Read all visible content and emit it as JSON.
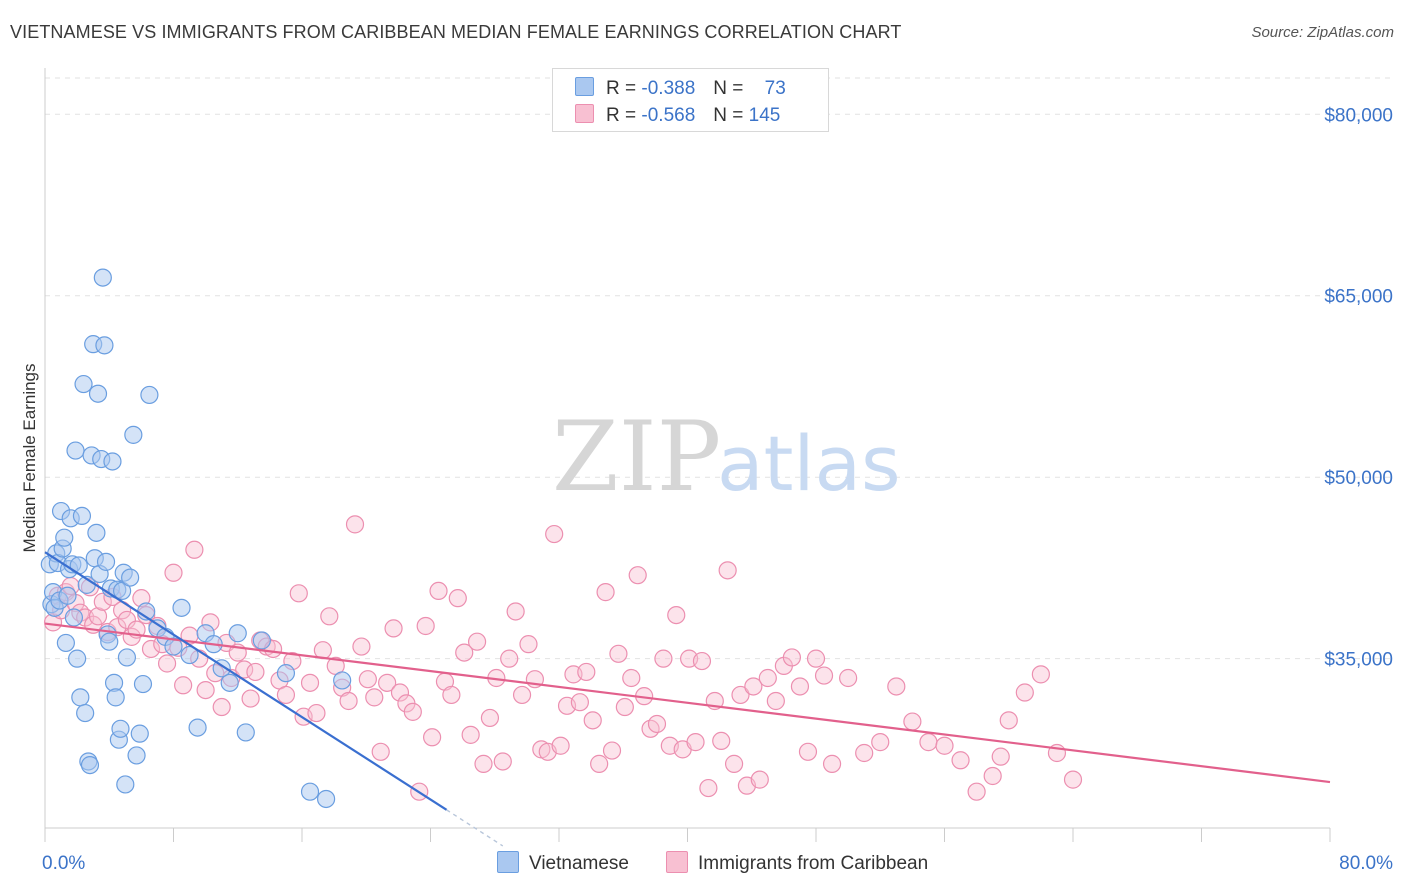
{
  "header": {
    "title": "VIETNAMESE VS IMMIGRANTS FROM CARIBBEAN MEDIAN FEMALE EARNINGS CORRELATION CHART",
    "source": "Source: ZipAtlas.com"
  },
  "watermark": {
    "zip": "ZIP",
    "atlas": "atlas"
  },
  "legend": {
    "rows": [
      {
        "r_label": "R =",
        "r_value": "-0.388",
        "n_label": "N =",
        "n_value": "73",
        "color": "#aac8f0",
        "stroke": "#6a9ee0"
      },
      {
        "r_label": "R =",
        "r_value": "-0.568",
        "n_label": "N =",
        "n_value": "145",
        "color": "#f8c0d2",
        "stroke": "#ec8fb0"
      }
    ]
  },
  "colors": {
    "blue_fill": "#aac8f0",
    "blue_stroke": "#6a9ee0",
    "blue_line": "#3a6fd0",
    "pink_fill": "#f8c0d2",
    "pink_stroke": "#ec8fb0",
    "pink_line": "#e2608c",
    "axis_label": "#3b73c8",
    "grid": "#e2e2e2"
  },
  "chart_data": {
    "type": "scatter",
    "title": "VIETNAMESE VS IMMIGRANTS FROM CARIBBEAN MEDIAN FEMALE EARNINGS CORRELATION CHART",
    "xlabel": "",
    "ylabel": "Median Female Earnings",
    "xlim": [
      0,
      80
    ],
    "ylim": [
      21000,
      83000
    ],
    "x_tick_labels": [
      "0.0%",
      "80.0%"
    ],
    "y_ticks": [
      35000,
      50000,
      65000,
      80000
    ],
    "y_tick_labels": [
      "$35,000",
      "$50,000",
      "$65,000",
      "$80,000"
    ],
    "grid": true,
    "series": [
      {
        "name": "Vietnamese",
        "r": -0.388,
        "n": 73,
        "trend": {
          "x0": 0,
          "y0": 43800,
          "x1": 25,
          "y1": 22500,
          "dash_to_x": 28.5
        },
        "points": [
          [
            0.3,
            42800
          ],
          [
            0.4,
            39500
          ],
          [
            0.5,
            40500
          ],
          [
            0.6,
            39200
          ],
          [
            0.7,
            43700
          ],
          [
            0.8,
            42900
          ],
          [
            0.9,
            39800
          ],
          [
            1.0,
            47200
          ],
          [
            1.1,
            44100
          ],
          [
            1.2,
            45000
          ],
          [
            1.3,
            36300
          ],
          [
            1.4,
            40200
          ],
          [
            1.5,
            42400
          ],
          [
            1.6,
            46600
          ],
          [
            1.7,
            42800
          ],
          [
            1.8,
            38400
          ],
          [
            1.9,
            52200
          ],
          [
            2.0,
            35000
          ],
          [
            2.1,
            42700
          ],
          [
            2.2,
            31800
          ],
          [
            2.3,
            46800
          ],
          [
            2.4,
            57700
          ],
          [
            2.5,
            30500
          ],
          [
            2.6,
            41100
          ],
          [
            2.7,
            26500
          ],
          [
            2.8,
            26200
          ],
          [
            2.9,
            51800
          ],
          [
            3.0,
            61000
          ],
          [
            3.1,
            43300
          ],
          [
            3.2,
            45400
          ],
          [
            3.3,
            56900
          ],
          [
            3.4,
            42000
          ],
          [
            3.5,
            51500
          ],
          [
            3.6,
            66500
          ],
          [
            3.7,
            60900
          ],
          [
            3.8,
            43000
          ],
          [
            3.9,
            37000
          ],
          [
            4.0,
            36400
          ],
          [
            4.1,
            40800
          ],
          [
            4.2,
            51300
          ],
          [
            4.3,
            33000
          ],
          [
            4.4,
            31800
          ],
          [
            4.5,
            40700
          ],
          [
            4.6,
            28300
          ],
          [
            4.7,
            29200
          ],
          [
            4.8,
            40600
          ],
          [
            4.9,
            42100
          ],
          [
            5.0,
            24600
          ],
          [
            5.1,
            35100
          ],
          [
            5.3,
            41700
          ],
          [
            5.5,
            53500
          ],
          [
            5.7,
            27000
          ],
          [
            5.9,
            28800
          ],
          [
            6.1,
            32900
          ],
          [
            6.3,
            38900
          ],
          [
            6.5,
            56800
          ],
          [
            7.0,
            37500
          ],
          [
            7.5,
            36800
          ],
          [
            8.0,
            36000
          ],
          [
            8.5,
            39200
          ],
          [
            9.0,
            35300
          ],
          [
            9.5,
            29300
          ],
          [
            10.0,
            37100
          ],
          [
            10.5,
            36200
          ],
          [
            11.0,
            34200
          ],
          [
            11.5,
            33000
          ],
          [
            12.0,
            37100
          ],
          [
            12.5,
            28900
          ],
          [
            13.5,
            36500
          ],
          [
            15.0,
            33800
          ],
          [
            16.5,
            24000
          ],
          [
            17.5,
            23400
          ],
          [
            18.5,
            33200
          ]
        ]
      },
      {
        "name": "Immigrants from Caribbean",
        "r": -0.568,
        "n": 145,
        "trend": {
          "x0": 0,
          "y0": 37900,
          "x1": 80,
          "y1": 24800
        },
        "points": [
          [
            0.5,
            38000
          ],
          [
            0.8,
            40200
          ],
          [
            1.0,
            39000
          ],
          [
            1.3,
            40500
          ],
          [
            1.6,
            41000
          ],
          [
            1.9,
            39600
          ],
          [
            2.2,
            38800
          ],
          [
            2.5,
            38400
          ],
          [
            2.8,
            40900
          ],
          [
            3.0,
            37800
          ],
          [
            3.3,
            38500
          ],
          [
            3.6,
            39700
          ],
          [
            3.9,
            37200
          ],
          [
            4.2,
            40100
          ],
          [
            4.5,
            37600
          ],
          [
            4.8,
            39000
          ],
          [
            5.1,
            38200
          ],
          [
            5.4,
            36800
          ],
          [
            5.7,
            37400
          ],
          [
            6.0,
            40000
          ],
          [
            6.3,
            38600
          ],
          [
            6.6,
            35800
          ],
          [
            7.0,
            37700
          ],
          [
            7.3,
            36200
          ],
          [
            7.6,
            34600
          ],
          [
            8.0,
            42100
          ],
          [
            8.3,
            35900
          ],
          [
            8.6,
            32800
          ],
          [
            9.0,
            36900
          ],
          [
            9.3,
            44000
          ],
          [
            9.6,
            35000
          ],
          [
            10.0,
            32400
          ],
          [
            10.3,
            38000
          ],
          [
            10.6,
            33800
          ],
          [
            11.0,
            31000
          ],
          [
            11.3,
            36300
          ],
          [
            11.6,
            33400
          ],
          [
            12.0,
            35500
          ],
          [
            12.4,
            34100
          ],
          [
            12.8,
            31700
          ],
          [
            13.1,
            33900
          ],
          [
            13.4,
            36500
          ],
          [
            13.8,
            36000
          ],
          [
            14.2,
            35800
          ],
          [
            14.6,
            33200
          ],
          [
            15.0,
            32000
          ],
          [
            15.4,
            34800
          ],
          [
            15.8,
            40400
          ],
          [
            16.1,
            30200
          ],
          [
            16.5,
            33000
          ],
          [
            16.9,
            30500
          ],
          [
            17.3,
            35700
          ],
          [
            17.7,
            38500
          ],
          [
            18.1,
            34400
          ],
          [
            18.5,
            32600
          ],
          [
            18.9,
            31500
          ],
          [
            19.3,
            46100
          ],
          [
            19.7,
            36000
          ],
          [
            20.1,
            33300
          ],
          [
            20.5,
            31800
          ],
          [
            20.9,
            27300
          ],
          [
            21.3,
            33000
          ],
          [
            21.7,
            37500
          ],
          [
            22.1,
            32200
          ],
          [
            22.5,
            31300
          ],
          [
            22.9,
            30600
          ],
          [
            23.3,
            24000
          ],
          [
            23.7,
            37700
          ],
          [
            24.1,
            28500
          ],
          [
            24.5,
            40600
          ],
          [
            24.9,
            33100
          ],
          [
            25.3,
            32000
          ],
          [
            25.7,
            40000
          ],
          [
            26.1,
            35500
          ],
          [
            26.5,
            28700
          ],
          [
            26.9,
            36400
          ],
          [
            27.3,
            26300
          ],
          [
            27.7,
            30100
          ],
          [
            28.1,
            33400
          ],
          [
            28.5,
            26500
          ],
          [
            28.9,
            35000
          ],
          [
            29.3,
            38900
          ],
          [
            29.7,
            32000
          ],
          [
            30.1,
            36200
          ],
          [
            30.5,
            33300
          ],
          [
            30.9,
            27500
          ],
          [
            31.3,
            27300
          ],
          [
            31.7,
            45300
          ],
          [
            32.1,
            27800
          ],
          [
            32.5,
            31100
          ],
          [
            32.9,
            33700
          ],
          [
            33.3,
            31400
          ],
          [
            33.7,
            33900
          ],
          [
            34.1,
            29900
          ],
          [
            34.5,
            26300
          ],
          [
            34.9,
            40500
          ],
          [
            35.3,
            27400
          ],
          [
            35.7,
            35400
          ],
          [
            36.1,
            31000
          ],
          [
            36.5,
            33400
          ],
          [
            36.9,
            41900
          ],
          [
            37.3,
            31900
          ],
          [
            37.7,
            29200
          ],
          [
            38.1,
            29600
          ],
          [
            38.5,
            35000
          ],
          [
            38.9,
            27800
          ],
          [
            39.3,
            38600
          ],
          [
            39.7,
            27500
          ],
          [
            40.1,
            35000
          ],
          [
            40.5,
            28100
          ],
          [
            40.9,
            34800
          ],
          [
            41.3,
            24300
          ],
          [
            41.7,
            31500
          ],
          [
            42.1,
            28200
          ],
          [
            42.5,
            42300
          ],
          [
            42.9,
            26300
          ],
          [
            43.3,
            32000
          ],
          [
            43.7,
            24500
          ],
          [
            44.1,
            32700
          ],
          [
            44.5,
            25000
          ],
          [
            45.0,
            33400
          ],
          [
            45.5,
            31500
          ],
          [
            46.0,
            34400
          ],
          [
            46.5,
            35100
          ],
          [
            47.0,
            32700
          ],
          [
            47.5,
            27300
          ],
          [
            48.0,
            35000
          ],
          [
            48.5,
            33600
          ],
          [
            49.0,
            26300
          ],
          [
            50.0,
            33400
          ],
          [
            51.0,
            27200
          ],
          [
            52.0,
            28100
          ],
          [
            53.0,
            32700
          ],
          [
            54.0,
            29800
          ],
          [
            55.0,
            28100
          ],
          [
            56.0,
            27800
          ],
          [
            57.0,
            26600
          ],
          [
            58.0,
            24000
          ],
          [
            59.0,
            25300
          ],
          [
            59.5,
            26900
          ],
          [
            60.0,
            29900
          ],
          [
            61.0,
            32200
          ],
          [
            62.0,
            33700
          ],
          [
            63.0,
            27200
          ],
          [
            64.0,
            25000
          ]
        ]
      }
    ]
  },
  "bottom_legend": {
    "items": [
      {
        "label": "Vietnamese"
      },
      {
        "label": "Immigrants from Caribbean"
      }
    ]
  }
}
